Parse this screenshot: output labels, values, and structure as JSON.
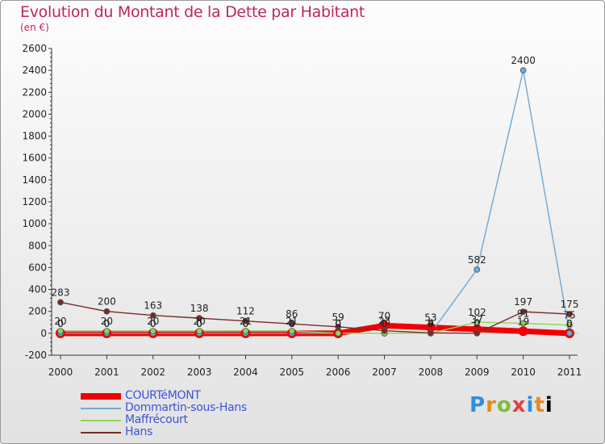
{
  "chart_data": {
    "type": "line",
    "title": "Evolution du Montant de la Dette par Habitant",
    "subtitle": "(en €)",
    "x": [
      "2000",
      "2001",
      "2002",
      "2003",
      "2004",
      "2005",
      "2006",
      "2007",
      "2008",
      "2009",
      "2010",
      "2011"
    ],
    "ylim": [
      -200,
      2600
    ],
    "yticks": [
      -200,
      0,
      200,
      400,
      600,
      800,
      1000,
      1200,
      1400,
      1600,
      1800,
      2000,
      2200,
      2400,
      2600
    ],
    "grid": false,
    "legend_position": "bottom-left",
    "series": [
      {
        "name": "COURTéMONT",
        "color": "#ee0000",
        "values": [
          0,
          0,
          0,
          0,
          0,
          0,
          0,
          70,
          53,
          37,
          19,
          0
        ],
        "labels": [
          "0",
          "0",
          "0",
          "0",
          "0",
          "0",
          "0",
          "70",
          "53",
          "37",
          "19",
          "0"
        ]
      },
      {
        "name": "Dommartin-sous-Hans",
        "color": "#6fa9d6",
        "values": [
          0,
          0,
          0,
          0,
          0,
          0,
          0,
          0,
          0,
          582,
          2400,
          0
        ],
        "labels": [
          "0",
          "0",
          "0",
          "0",
          "0",
          "0",
          "0",
          "0",
          "0",
          "582",
          "2400",
          "0"
        ]
      },
      {
        "name": "Maffrécourt",
        "color": "#8fd45a",
        "values": [
          20,
          20,
          20,
          20,
          21,
          21,
          0,
          0,
          0,
          102,
          91,
          75
        ],
        "labels": [
          "20",
          "20",
          "20",
          "20",
          "21",
          "21",
          "0",
          "0",
          "0",
          "102",
          "91",
          "75"
        ]
      },
      {
        "name": "Hans",
        "color": "#7a2a2a",
        "values": [
          283,
          200,
          163,
          138,
          112,
          86,
          59,
          23,
          4,
          0,
          197,
          175
        ],
        "labels": [
          "283",
          "200",
          "163",
          "138",
          "112",
          "86",
          "59",
          "23",
          "4",
          "0",
          "197",
          "175"
        ]
      }
    ]
  },
  "logo_text": "Proxiti"
}
